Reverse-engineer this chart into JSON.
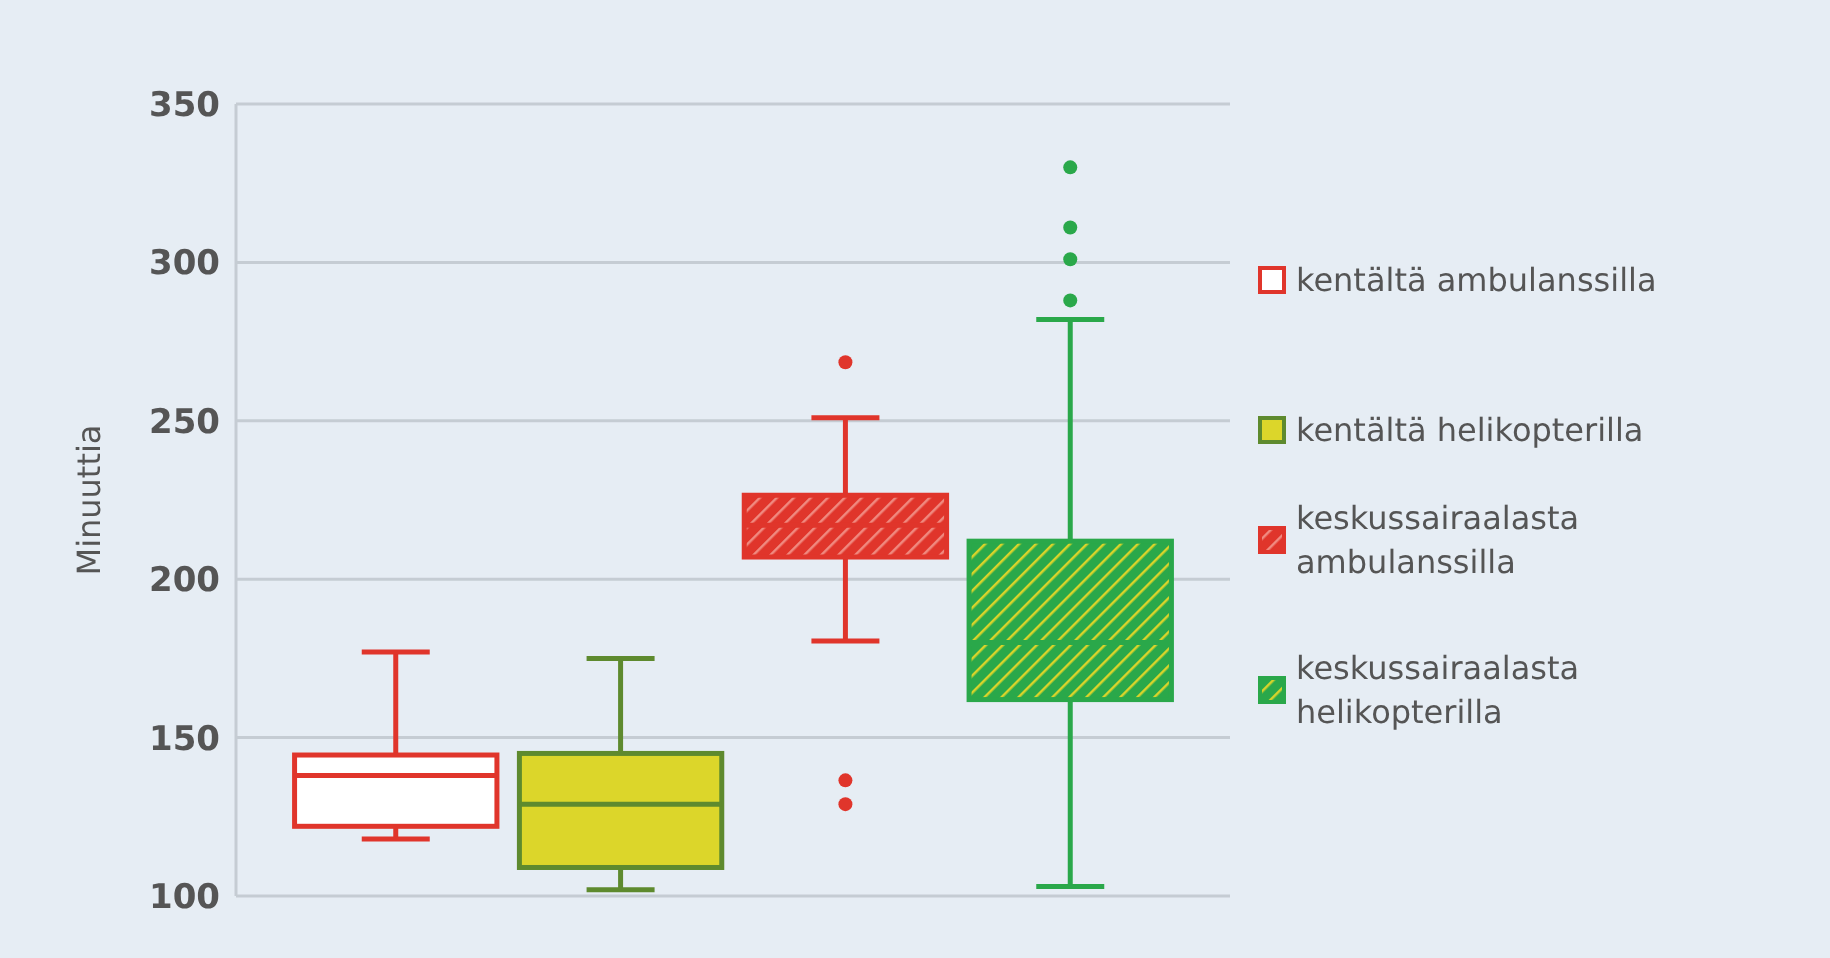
{
  "chart_data": {
    "type": "box",
    "ylabel": "Minuuttia",
    "categories": [
      null
    ],
    "ylim": [
      100,
      350
    ],
    "yticks": [
      100,
      150,
      200,
      250,
      300,
      350
    ],
    "grid": "y",
    "legend": "right",
    "series": [
      {
        "name": "kentältä ambulanssilla",
        "color": "#e0352b",
        "boxes": [
          {
            "low": 118,
            "q1": 122,
            "median": 138,
            "q3": 144.5,
            "high": 177
          }
        ]
      },
      {
        "name": "kentältä helikopterilla",
        "color": "#5e8a2e",
        "boxes": [
          {
            "low": 102,
            "q1": 109,
            "median": 129,
            "q3": 145,
            "high": 175
          }
        ]
      },
      {
        "name": "keskussairaalasta ambulanssilla",
        "color": "#e0352b",
        "boxes": [
          {
            "low": 180.5,
            "q1": 207,
            "median": 217,
            "q3": 226.5,
            "high": 251,
            "outliers": [
              268.5,
              136.5,
              129
            ]
          }
        ]
      },
      {
        "name": "keskussairaalasta helikopterilla",
        "color": "#2aa84a",
        "boxes": [
          {
            "low": 103,
            "q1": 162,
            "median": 180,
            "q3": 212,
            "high": 282,
            "outliers": [
              330,
              311,
              301,
              288
            ]
          }
        ]
      }
    ]
  }
}
